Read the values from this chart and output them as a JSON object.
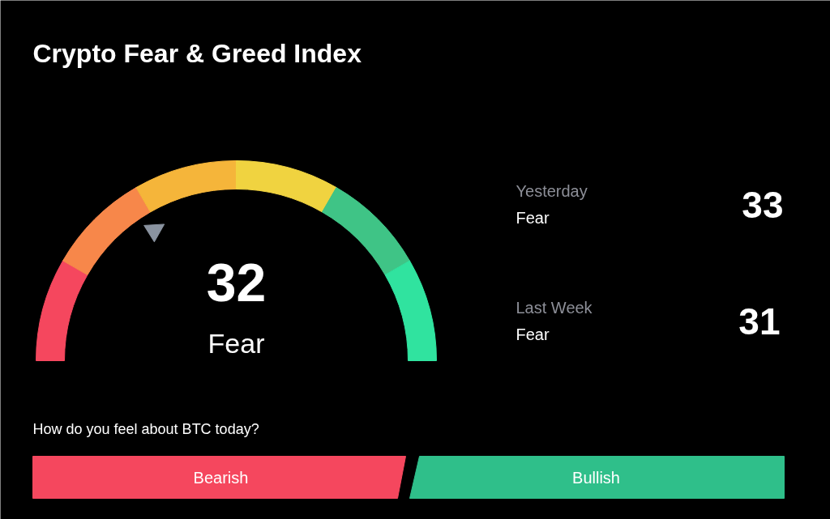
{
  "chart_data": {
    "type": "other",
    "title": "Crypto Fear & Greed Index",
    "categories": [
      null,
      "Yesterday",
      "Last Week"
    ],
    "values": [
      32,
      33,
      31
    ],
    "data_labels": true,
    "annotations": [
      "Fear",
      "Fear",
      "Fear",
      "How do you feel about BTC today?",
      "Bearish",
      "Bullish"
    ]
  }
}
